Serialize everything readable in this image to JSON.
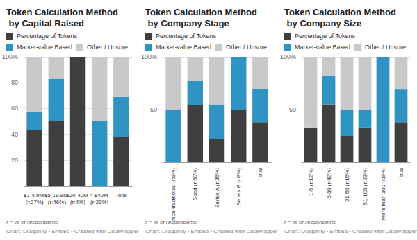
{
  "chart_data": [
    {
      "type": "bar",
      "title": "Token Calculation Method by Capital Raised",
      "categories": [
        "$1-4.9M (r:27%)",
        "$5-19.9M (r:46%)",
        "$20-40M (r:4%)",
        "> $40M (r:23%)",
        "Total"
      ],
      "series": [
        {
          "name": "Percentage of Tokens",
          "color": "#3f3f3f",
          "values": [
            43,
            50,
            100,
            0,
            38
          ]
        },
        {
          "name": "Market-value Based",
          "color": "#2f93c4",
          "values": [
            14,
            33,
            0,
            50,
            31
          ]
        },
        {
          "name": "Other / Unsure",
          "color": "#c9c9c9",
          "values": [
            43,
            17,
            0,
            50,
            31
          ]
        }
      ],
      "stacked": true,
      "legend": "top-left",
      "grid": true,
      "ylim": [
        0,
        100
      ],
      "yticks": [
        20,
        40,
        60,
        80,
        {
          "value": 100,
          "label": "100%"
        }
      ],
      "annotations": [
        "r = % of respondents",
        "Chart: Dragonfly • Embed • Created with Datawrapper"
      ]
    },
    {
      "type": "bar",
      "title": "Token Calculation Method by Company Stage",
      "categories": [
        "Non-traditional (r:8%)",
        "Seed (r:50%)",
        "Series A (r:35%)",
        "Series B (r:8%)",
        "Total"
      ],
      "series": [
        {
          "name": "Percentage of Tokens",
          "color": "#3f3f3f",
          "values": [
            0,
            54,
            22,
            50,
            38
          ]
        },
        {
          "name": "Market-value Based",
          "color": "#2f93c4",
          "values": [
            50,
            23,
            33,
            50,
            31
          ]
        },
        {
          "name": "Other / Unsure",
          "color": "#c9c9c9",
          "values": [
            50,
            23,
            45,
            0,
            31
          ]
        }
      ],
      "stacked": true,
      "legend": "top-left",
      "grid": true,
      "ylim": [
        0,
        100
      ],
      "yticks": [
        50,
        {
          "value": 100,
          "label": "100%"
        }
      ],
      "annotations": [
        "r = % of respondents",
        "Chart: Dragonfly • Embed • Created with Datawrapper"
      ]
    },
    {
      "type": "bar",
      "title": "Token Calculation Method by Company Size",
      "categories": [
        "1-5 (r:12%)",
        "6-10 (r:42%)",
        "21-50 (r:15%)",
        "51-100 (r:23%)",
        "More than 100 (r:8%)",
        "Total"
      ],
      "series": [
        {
          "name": "Percentage of Tokens",
          "color": "#3f3f3f",
          "values": [
            33,
            55,
            25,
            33,
            0,
            38
          ]
        },
        {
          "name": "Market-value Based",
          "color": "#2f93c4",
          "values": [
            0,
            27,
            25,
            17,
            100,
            31
          ]
        },
        {
          "name": "Other / Unsure",
          "color": "#c9c9c9",
          "values": [
            67,
            18,
            50,
            50,
            0,
            31
          ]
        }
      ],
      "stacked": true,
      "legend": "top-left",
      "grid": true,
      "ylim": [
        0,
        100
      ],
      "yticks": [
        50,
        {
          "value": 100,
          "label": "100%"
        }
      ],
      "annotations": [
        "r = % of respondents",
        "Chart: Dragonfly • Embed • Created with Datawrapper"
      ]
    }
  ]
}
